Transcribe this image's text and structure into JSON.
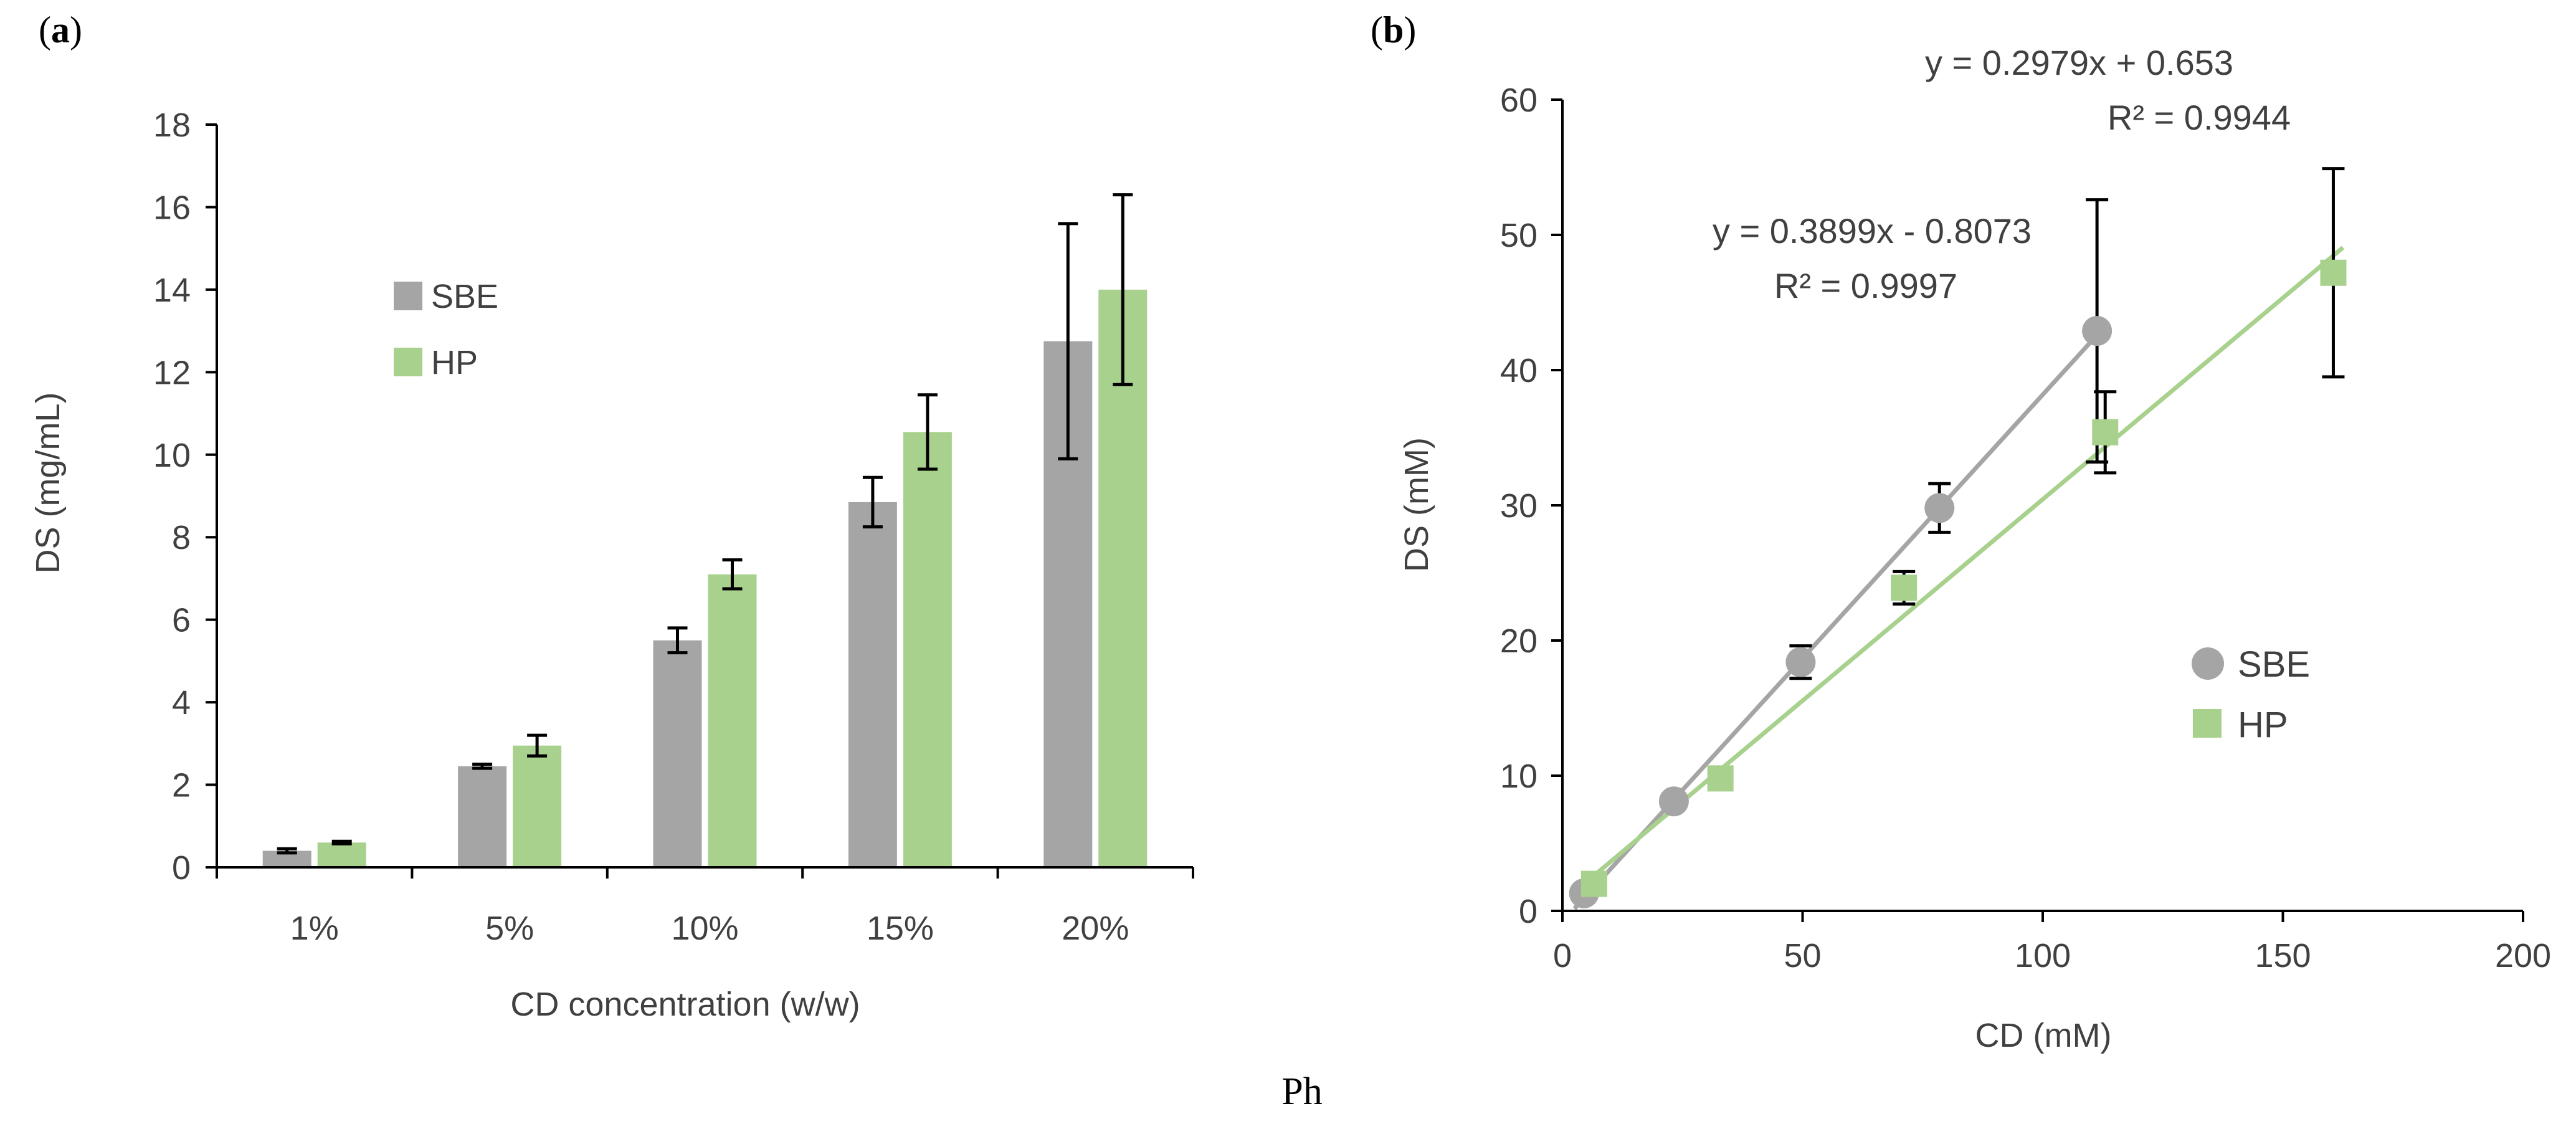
{
  "figure_label": "Ph",
  "colors": {
    "sbe": "#a5a5a5",
    "hp": "#a9d18e",
    "axis": "#000000",
    "text": "#404040",
    "errorbar": "#000000"
  },
  "chart_data": [
    {
      "panel": "(a)",
      "panel_letter": "a",
      "type": "bar",
      "xlabel": "CD concentration (w/w)",
      "ylabel": "DS (mg/mL)",
      "ylim": [
        0,
        18
      ],
      "yticks": [
        0,
        2,
        4,
        6,
        8,
        10,
        12,
        14,
        16,
        18
      ],
      "categories": [
        "1%",
        "5%",
        "10%",
        "15%",
        "20%"
      ],
      "legend_position": "upper-left",
      "series": [
        {
          "name": "SBE",
          "color": "#a5a5a5",
          "values": [
            0.4,
            2.45,
            5.5,
            8.85,
            12.75
          ],
          "errors": [
            0.05,
            0.05,
            0.3,
            0.6,
            2.85
          ]
        },
        {
          "name": "HP",
          "color": "#a9d18e",
          "values": [
            0.6,
            2.95,
            7.1,
            10.55,
            14.0
          ],
          "errors": [
            0.03,
            0.25,
            0.35,
            0.9,
            2.3
          ]
        }
      ]
    },
    {
      "panel": "(b)",
      "panel_letter": "b",
      "type": "scatter",
      "xlabel": "CD (mM)",
      "ylabel": "DS (mM)",
      "xlim": [
        0,
        200
      ],
      "ylim": [
        0,
        60
      ],
      "xticks": [
        0,
        50,
        100,
        150,
        200
      ],
      "yticks": [
        0,
        10,
        20,
        30,
        40,
        50,
        60
      ],
      "legend_position": "lower-right",
      "series": [
        {
          "name": "SBE",
          "marker": "circle",
          "color": "#a5a5a5",
          "x": [
            4.5,
            23.2,
            49.6,
            78.5,
            111.3
          ],
          "y": [
            1.3,
            8.1,
            18.4,
            29.8,
            42.9
          ],
          "errors": [
            0.3,
            0.4,
            1.2,
            1.8,
            9.7
          ],
          "trendline": {
            "slope": 0.3899,
            "intercept": -0.8073,
            "equation": "y = 0.3899x - 0.8073",
            "r2": "R² = 0.9997"
          }
        },
        {
          "name": "HP",
          "marker": "square",
          "color": "#a9d18e",
          "x": [
            6.6,
            32.9,
            71.1,
            113.0,
            160.5
          ],
          "y": [
            2.0,
            9.8,
            23.9,
            35.4,
            47.2
          ],
          "errors": [
            0.2,
            0.5,
            1.2,
            3.0,
            7.7
          ],
          "trendline": {
            "slope": 0.2979,
            "intercept": 0.653,
            "equation": "y = 0.2979x + 0.653",
            "r2": "R² = 0.9944"
          }
        }
      ]
    }
  ]
}
